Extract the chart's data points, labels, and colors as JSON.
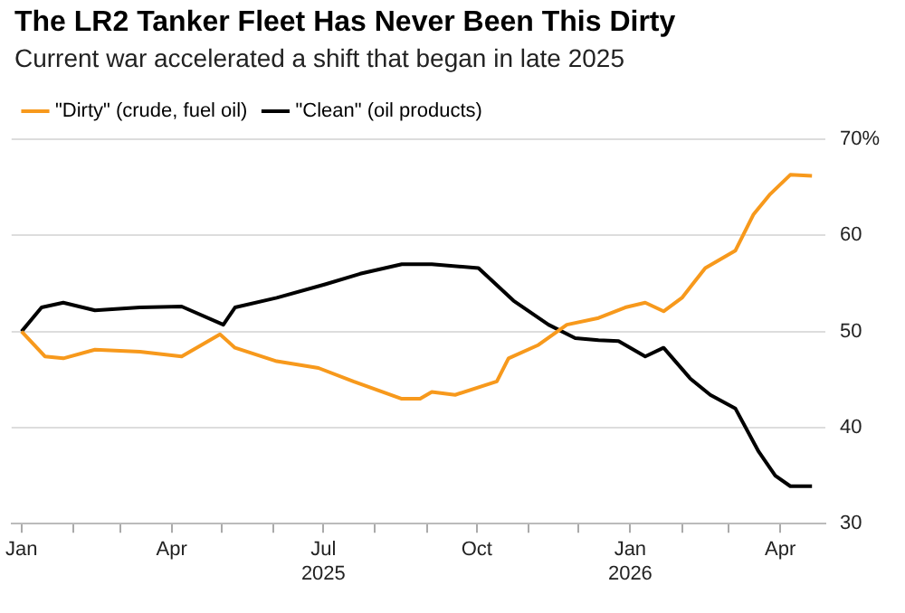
{
  "chart_data": {
    "type": "line",
    "title": "The LR2 Tanker Fleet Has Never Been This Dirty",
    "subtitle": "Current war accelerated a shift that began in late 2025",
    "series": [
      {
        "name": "\"Dirty\" (crude, fuel oil)",
        "color": "#f7991c",
        "x": [
          "2025-01-01",
          "2025-01-15",
          "2025-01-26",
          "2025-02-14",
          "2025-03-13",
          "2025-04-07",
          "2025-04-30",
          "2025-05-09",
          "2025-06-03",
          "2025-06-28",
          "2025-07-19",
          "2025-08-17",
          "2025-08-28",
          "2025-09-04",
          "2025-09-18",
          "2025-10-13",
          "2025-10-20",
          "2025-11-07",
          "2025-11-24",
          "2025-12-13",
          "2025-12-29",
          "2026-01-10",
          "2026-01-21",
          "2026-02-01",
          "2026-02-15",
          "2026-03-05",
          "2026-03-16",
          "2026-03-26",
          "2026-04-07",
          "2026-04-20"
        ],
        "values": [
          50,
          47.4,
          47.2,
          48.1,
          47.9,
          47.4,
          49.7,
          48.3,
          46.9,
          46.2,
          44.8,
          43,
          43,
          43.7,
          43.4,
          44.8,
          47.2,
          48.6,
          50.7,
          51.4,
          52.5,
          53,
          52.1,
          53.5,
          56.6,
          58.4,
          62.2,
          64.3,
          66.3,
          66.2
        ]
      },
      {
        "name": "\"Clean\" (oil products)",
        "color": "#000000",
        "x": [
          "2025-01-01",
          "2025-01-13",
          "2025-01-26",
          "2025-02-14",
          "2025-03-13",
          "2025-04-07",
          "2025-05-02",
          "2025-05-09",
          "2025-06-03",
          "2025-07-02",
          "2025-07-23",
          "2025-08-17",
          "2025-08-28",
          "2025-09-04",
          "2025-10-02",
          "2025-10-23",
          "2025-11-13",
          "2025-11-29",
          "2025-12-13",
          "2025-12-25",
          "2026-01-10",
          "2026-01-21",
          "2026-02-06",
          "2026-02-18",
          "2026-03-05",
          "2026-03-19",
          "2026-03-29",
          "2026-04-07",
          "2026-04-20"
        ],
        "values": [
          50,
          52.5,
          53,
          52.2,
          52.5,
          52.6,
          50.7,
          52.5,
          53.5,
          54.9,
          56,
          57,
          57,
          57,
          56.6,
          53.2,
          50.7,
          49.3,
          49.1,
          49,
          47.4,
          48.3,
          45.1,
          43.4,
          42,
          37.5,
          35,
          33.9,
          33.9
        ]
      }
    ],
    "xlim": [
      "2024-12-26",
      "2026-04-28"
    ],
    "xticks": [
      {
        "value": "2025-01-01",
        "label": "Jan"
      },
      {
        "value": "2025-02-01",
        "label": null
      },
      {
        "value": "2025-03-01",
        "label": null
      },
      {
        "value": "2025-04-01",
        "label": "Apr"
      },
      {
        "value": "2025-05-01",
        "label": null
      },
      {
        "value": "2025-06-01",
        "label": null
      },
      {
        "value": "2025-07-01",
        "label": "Jul\n2025"
      },
      {
        "value": "2025-08-01",
        "label": null
      },
      {
        "value": "2025-09-01",
        "label": null
      },
      {
        "value": "2025-10-01",
        "label": "Oct"
      },
      {
        "value": "2025-11-01",
        "label": null
      },
      {
        "value": "2025-12-01",
        "label": null
      },
      {
        "value": "2026-01-01",
        "label": "Jan\n2026"
      },
      {
        "value": "2026-02-01",
        "label": null
      },
      {
        "value": "2026-03-01",
        "label": null
      },
      {
        "value": "2026-04-01",
        "label": "Apr"
      }
    ],
    "ylim": [
      30,
      70
    ],
    "yticks": [
      {
        "value": 70,
        "label": "70%"
      },
      60,
      50,
      40,
      30
    ],
    "grid": "y",
    "legend": "top left",
    "marker": "none",
    "line_style": "solid"
  }
}
